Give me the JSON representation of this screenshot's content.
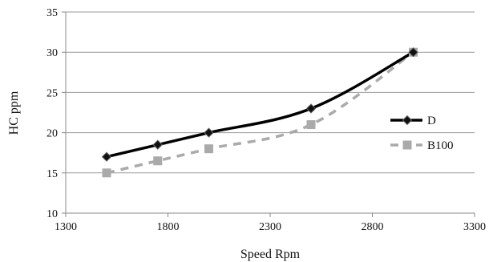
{
  "chart_data": {
    "type": "line",
    "title": "",
    "xlabel": "Speed Rpm",
    "ylabel": "HC ppm",
    "xlim": [
      1300,
      3300
    ],
    "ylim": [
      10,
      35
    ],
    "xticks": [
      "1300",
      "1800",
      "2300",
      "2800",
      "3300"
    ],
    "yticks": [
      "10",
      "15",
      "20",
      "25",
      "30",
      "35"
    ],
    "grid": "horizontal",
    "legend_position": "right",
    "series": [
      {
        "name": "D",
        "x": [
          1500,
          1750,
          2000,
          2500,
          3000
        ],
        "y": [
          17,
          18.5,
          20,
          23,
          30
        ],
        "color": "#000000",
        "line_style": "solid",
        "marker": "diamond"
      },
      {
        "name": "B100",
        "x": [
          1500,
          1750,
          2000,
          2500,
          3000
        ],
        "y": [
          15,
          16.5,
          18,
          21,
          30
        ],
        "color": "#aaaaaa",
        "line_style": "dashed",
        "marker": "square"
      }
    ]
  }
}
